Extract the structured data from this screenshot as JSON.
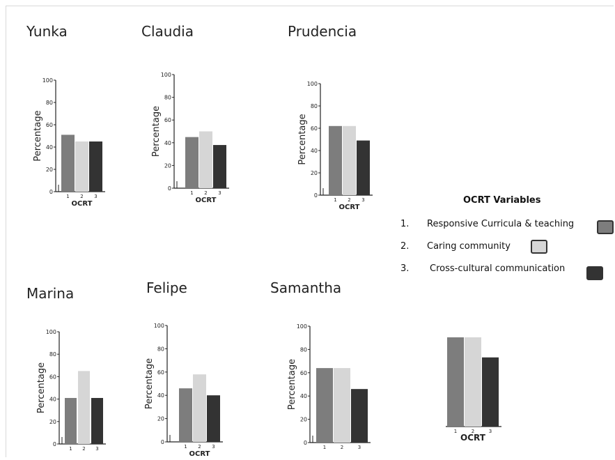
{
  "colors": {
    "series1": "#7d7d7d",
    "series2": "#d6d6d6",
    "series3": "#333333"
  },
  "legend": {
    "title": "OCRT Variables",
    "items": [
      {
        "num": "1.",
        "label": "Responsive Curricula & teaching",
        "color": "#7d7d7d"
      },
      {
        "num": "2.",
        "label": "Caring community",
        "color": "#d6d6d6"
      },
      {
        "num": "3.",
        "label": "Cross-cultural communication",
        "color": "#333333"
      }
    ]
  },
  "chart_data": [
    {
      "type": "bar",
      "title": "Yunka",
      "xlabel": "OCRT",
      "ylabel": "Percentage",
      "categories": [
        "1",
        "2",
        "3"
      ],
      "values": [
        51,
        45,
        45
      ],
      "ylim": [
        0,
        100
      ],
      "yticks": [
        0,
        20,
        40,
        60,
        80,
        100
      ]
    },
    {
      "type": "bar",
      "title": "Claudia",
      "xlabel": "OCRT",
      "ylabel": "Percentage",
      "categories": [
        "1",
        "2",
        "3"
      ],
      "values": [
        45,
        50,
        38
      ],
      "ylim": [
        0,
        100
      ],
      "yticks": [
        0,
        20,
        40,
        60,
        80,
        100
      ]
    },
    {
      "type": "bar",
      "title": "Prudencia",
      "xlabel": "OCRT",
      "ylabel": "Percentage",
      "categories": [
        "1",
        "2",
        "3"
      ],
      "values": [
        62,
        62,
        49
      ],
      "ylim": [
        0,
        100
      ],
      "yticks": [
        0,
        20,
        40,
        60,
        80,
        100
      ]
    },
    {
      "type": "bar",
      "title": "Marina",
      "xlabel": "",
      "ylabel": "Percentage",
      "categories": [
        "1",
        "2",
        "3"
      ],
      "values": [
        41,
        65,
        41
      ],
      "ylim": [
        0,
        100
      ],
      "yticks": [
        0,
        20,
        40,
        60,
        80,
        100
      ]
    },
    {
      "type": "bar",
      "title": "Felipe",
      "xlabel": "OCRT",
      "ylabel": "Percentage",
      "categories": [
        "1",
        "2",
        "3"
      ],
      "values": [
        46,
        58,
        40
      ],
      "ylim": [
        0,
        100
      ],
      "yticks": [
        0,
        20,
        40,
        60,
        80,
        100
      ]
    },
    {
      "type": "bar",
      "title": "Samantha",
      "xlabel": "",
      "ylabel": "Percentage",
      "categories": [
        "1",
        "2",
        "3"
      ],
      "values": [
        64,
        64,
        46
      ],
      "ylim": [
        0,
        100
      ],
      "yticks": [
        0,
        20,
        40,
        60,
        80,
        100
      ]
    },
    {
      "type": "bar",
      "title": "",
      "xlabel": "OCRT",
      "ylabel": "",
      "categories": [
        "1",
        "2",
        "3"
      ],
      "values": [
        80,
        80,
        62
      ],
      "ylim": [
        0,
        100
      ],
      "yticks": []
    }
  ]
}
